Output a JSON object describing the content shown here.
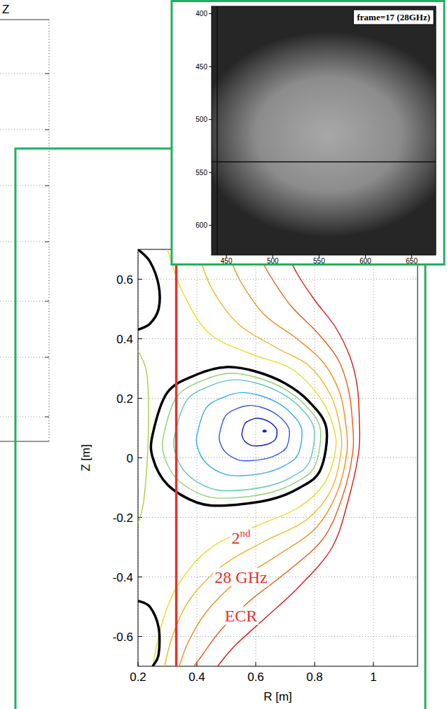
{
  "chart_data": {
    "type": "contour",
    "xlabel": "R [m]",
    "ylabel": "Z [m]",
    "xlim": [
      0.2,
      1.15
    ],
    "ylim": [
      -0.7,
      0.7
    ],
    "xticks": [
      0.2,
      0.4,
      0.6,
      0.8,
      1
    ],
    "yticks": [
      -0.6,
      -0.4,
      -0.2,
      0,
      0.2,
      0.4,
      0.6
    ],
    "grid": true,
    "series": [
      {
        "color": "#e6dc28",
        "x": [
          0.3,
          0.35,
          0.44,
          0.58,
          0.72,
          0.82,
          0.865,
          0.87,
          0.83,
          0.74,
          0.6,
          0.45,
          0.34,
          0.28,
          0.25
        ],
        "values": [
          0.7,
          0.56,
          0.42,
          0.35,
          0.3,
          0.2,
          0.1,
          0.02,
          -0.09,
          -0.17,
          -0.23,
          -0.3,
          -0.42,
          -0.56,
          -0.7
        ]
      },
      {
        "color": "#f2b21e",
        "x": [
          0.4,
          0.45,
          0.54,
          0.67,
          0.78,
          0.855,
          0.885,
          0.89,
          0.855,
          0.77,
          0.63,
          0.49,
          0.38,
          0.32,
          0.29
        ],
        "values": [
          0.7,
          0.57,
          0.45,
          0.37,
          0.31,
          0.21,
          0.11,
          0.02,
          -0.11,
          -0.21,
          -0.28,
          -0.36,
          -0.47,
          -0.59,
          -0.7
        ]
      },
      {
        "color": "#f08a1c",
        "x": [
          0.5,
          0.55,
          0.63,
          0.74,
          0.83,
          0.885,
          0.905,
          0.91,
          0.875,
          0.8,
          0.67,
          0.53,
          0.43,
          0.37,
          0.34
        ],
        "values": [
          0.7,
          0.59,
          0.48,
          0.4,
          0.32,
          0.22,
          0.12,
          0.02,
          -0.12,
          -0.24,
          -0.33,
          -0.42,
          -0.52,
          -0.62,
          -0.7
        ]
      },
      {
        "color": "#e85a18",
        "x": [
          0.6,
          0.65,
          0.72,
          0.81,
          0.88,
          0.915,
          0.928,
          0.93,
          0.895,
          0.83,
          0.71,
          0.58,
          0.48,
          0.42,
          0.39
        ],
        "values": [
          0.7,
          0.61,
          0.51,
          0.42,
          0.33,
          0.23,
          0.13,
          0.02,
          -0.13,
          -0.27,
          -0.38,
          -0.48,
          -0.58,
          -0.66,
          -0.7
        ]
      },
      {
        "color": "#d81a12",
        "x": [
          0.7,
          0.74,
          0.8,
          0.87,
          0.92,
          0.945,
          0.952,
          0.95,
          0.915,
          0.86,
          0.75,
          0.63,
          0.53,
          0.47
        ],
        "values": [
          0.7,
          0.62,
          0.53,
          0.44,
          0.34,
          0.24,
          0.13,
          0.02,
          -0.14,
          -0.3,
          -0.43,
          -0.54,
          -0.63,
          -0.7
        ]
      },
      {
        "color": "#a8d040",
        "x": [
          0.2,
          0.23,
          0.235,
          0.22,
          0.2
        ],
        "values": [
          0.36,
          0.28,
          0.08,
          -0.14,
          -0.22
        ]
      },
      {
        "color": "#8cd070",
        "x": [
          0.288,
          0.333,
          0.423,
          0.513,
          0.603,
          0.693,
          0.765,
          0.819,
          0.801,
          0.738,
          0.648,
          0.513,
          0.423,
          0.333,
          0.288,
          0.288
        ],
        "values": [
          0.081,
          0.207,
          0.261,
          0.284,
          0.27,
          0.234,
          0.18,
          0.099,
          -0.027,
          -0.081,
          -0.117,
          -0.135,
          -0.126,
          -0.072,
          0.009,
          0.081
        ]
      },
      {
        "color": "#5cc8b0",
        "x": [
          0.326,
          0.366,
          0.446,
          0.526,
          0.606,
          0.686,
          0.75,
          0.798,
          0.782,
          0.726,
          0.646,
          0.526,
          0.446,
          0.366,
          0.326,
          0.326
        ],
        "values": [
          0.082,
          0.194,
          0.242,
          0.262,
          0.25,
          0.218,
          0.17,
          0.098,
          -0.014,
          -0.062,
          -0.094,
          -0.11,
          -0.102,
          -0.054,
          0.018,
          0.082
        ]
      },
      {
        "color": "#33aaee",
        "x": [
          0.402,
          0.432,
          0.492,
          0.552,
          0.612,
          0.672,
          0.72,
          0.756,
          0.744,
          0.702,
          0.642,
          0.552,
          0.492,
          0.432,
          0.402,
          0.402
        ],
        "values": [
          0.084,
          0.168,
          0.204,
          0.219,
          0.21,
          0.186,
          0.15,
          0.096,
          0.012,
          -0.024,
          -0.048,
          -0.06,
          -0.054,
          -0.018,
          0.036,
          0.084
        ]
      },
      {
        "color": "#3355ee",
        "x": [
          0.478,
          0.498,
          0.538,
          0.578,
          0.618,
          0.658,
          0.69,
          0.714,
          0.706,
          0.678,
          0.638,
          0.578,
          0.538,
          0.498,
          0.478,
          0.478
        ],
        "values": [
          0.086,
          0.142,
          0.166,
          0.176,
          0.17,
          0.154,
          0.13,
          0.094,
          0.038,
          0.014,
          -0.002,
          -0.01,
          -0.006,
          0.018,
          0.054,
          0.086
        ]
      },
      {
        "color": "#0a1acc",
        "x": [
          0.554,
          0.564,
          0.584,
          0.604,
          0.624,
          0.644,
          0.66,
          0.672,
          0.668,
          0.654,
          0.634,
          0.604,
          0.584,
          0.564,
          0.554,
          0.554
        ],
        "values": [
          0.088,
          0.116,
          0.128,
          0.133,
          0.13,
          0.122,
          0.11,
          0.092,
          0.064,
          0.052,
          0.044,
          0.04,
          0.042,
          0.054,
          0.072,
          0.088
        ]
      },
      {
        "color": "#000000",
        "line_style": "bold",
        "x": [
          0.25,
          0.3,
          0.4,
          0.5,
          0.6,
          0.7,
          0.78,
          0.84,
          0.82,
          0.75,
          0.65,
          0.5,
          0.4,
          0.3,
          0.25,
          0.25
        ],
        "values": [
          0.08,
          0.22,
          0.28,
          0.305,
          0.29,
          0.25,
          0.19,
          0.1,
          -0.04,
          -0.1,
          -0.14,
          -0.16,
          -0.15,
          -0.09,
          0.0,
          0.08
        ]
      },
      {
        "color": "#000000",
        "line_style": "bold",
        "x": [
          0.2,
          0.24,
          0.27,
          0.27,
          0.24,
          0.2
        ],
        "values": [
          0.7,
          0.66,
          0.58,
          0.5,
          0.45,
          0.43
        ]
      },
      {
        "color": "#000000",
        "line_style": "bold",
        "x": [
          0.2,
          0.24,
          0.27,
          0.27,
          0.25
        ],
        "values": [
          -0.48,
          -0.5,
          -0.57,
          -0.66,
          -0.7
        ]
      },
      {
        "type": "vline",
        "color": "#e8302a",
        "x": 0.33
      },
      {
        "type": "scatter",
        "color": "#1020e0",
        "marker": "dot",
        "x": [
          0.63
        ],
        "values": [
          0.09
        ]
      }
    ],
    "annotations": [
      {
        "text": "2",
        "superscript": "nd",
        "x": 0.55,
        "y": -0.27
      },
      {
        "text": "28 GHz",
        "x": 0.55,
        "y": -0.4
      },
      {
        "text": "ECR",
        "x": 0.55,
        "y": -0.53
      }
    ],
    "inset": {
      "type": "image",
      "title": "frame=17 (28GHz)",
      "xlim": [
        434,
        676
      ],
      "ylim": [
        393,
        628
      ],
      "xticks": [
        450,
        500,
        550,
        600,
        650
      ],
      "yticks": [
        400,
        450,
        500,
        550,
        600
      ],
      "crosshair": {
        "x": 440,
        "y": 540
      },
      "emission": {
        "cx": 560,
        "cy": 514,
        "rx": 105,
        "ry": 72
      }
    },
    "left_panel": {
      "label": "Z"
    }
  }
}
